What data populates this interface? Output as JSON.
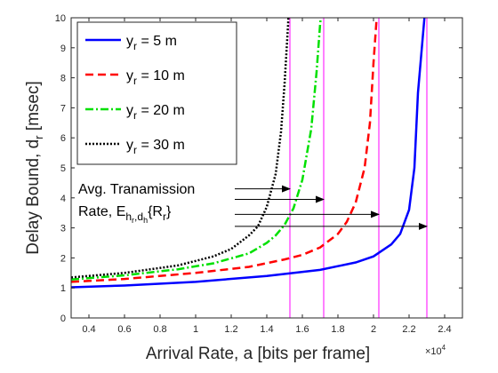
{
  "chart_data": {
    "type": "line",
    "xlabel": "Arrival Rate, a [bits per frame]",
    "ylabel_main": "Delay Bound, d",
    "ylabel_sub": "r",
    "ylabel_unit": " [msec]",
    "x_exponent": {
      "base": "×10",
      "power": "4"
    },
    "xlim": [
      0.3,
      2.5
    ],
    "ylim": [
      0,
      10
    ],
    "x_ticks": [
      0.4,
      0.6,
      0.8,
      1.0,
      1.2,
      1.4,
      1.6,
      1.8,
      2.0,
      2.2,
      2.4
    ],
    "x_tick_labels": [
      "0.4",
      "0.6",
      "0.8",
      "1",
      "1.2",
      "1.4",
      "1.6",
      "1.8",
      "2",
      "2.2",
      "2.4"
    ],
    "y_ticks": [
      0,
      1,
      2,
      3,
      4,
      5,
      6,
      7,
      8,
      9,
      10
    ],
    "y_tick_labels": [
      "0",
      "1",
      "2",
      "3",
      "4",
      "5",
      "6",
      "7",
      "8",
      "9",
      "10"
    ],
    "grid": false,
    "legend_position": "top-left",
    "series": [
      {
        "name": "y",
        "name_sub": "r",
        "name_rest": " = 5 m",
        "color": "#0000ff",
        "dash": "solid",
        "asymptote": 2.3,
        "x": [
          0.3,
          0.6,
          1.0,
          1.4,
          1.7,
          1.9,
          2.0,
          2.1,
          2.15,
          2.2,
          2.23,
          2.25
        ],
        "y": [
          1.02,
          1.08,
          1.2,
          1.4,
          1.6,
          1.85,
          2.05,
          2.45,
          2.8,
          3.6,
          5.0,
          7.5
        ]
      },
      {
        "name": "y",
        "name_sub": "r",
        "name_rest": " = 10 m",
        "color": "#ff0000",
        "dash": "dashed",
        "asymptote": 2.03,
        "x": [
          0.3,
          0.6,
          1.0,
          1.3,
          1.5,
          1.6,
          1.7,
          1.8,
          1.85,
          1.9,
          1.95,
          1.98,
          2.0
        ],
        "y": [
          1.2,
          1.3,
          1.5,
          1.7,
          1.95,
          2.1,
          2.35,
          2.8,
          3.2,
          3.85,
          5.0,
          6.5,
          8.5
        ]
      },
      {
        "name": "y",
        "name_sub": "r",
        "name_rest": " = 20 m",
        "color": "#00e000",
        "dash": "dashdot",
        "asymptote": 1.72,
        "x": [
          0.3,
          0.6,
          0.9,
          1.1,
          1.3,
          1.4,
          1.45,
          1.5,
          1.55,
          1.6,
          1.65,
          1.68,
          1.7
        ],
        "y": [
          1.28,
          1.42,
          1.62,
          1.82,
          2.15,
          2.5,
          2.75,
          3.1,
          3.65,
          4.6,
          6.3,
          8.2,
          9.8
        ]
      },
      {
        "name": "y",
        "name_sub": "r",
        "name_rest": " = 30 m",
        "color": "#000000",
        "dash": "dotted",
        "asymptote": 1.53,
        "x": [
          0.3,
          0.6,
          0.9,
          1.1,
          1.2,
          1.3,
          1.35,
          1.4,
          1.45,
          1.48,
          1.5,
          1.52
        ],
        "y": [
          1.35,
          1.5,
          1.75,
          2.05,
          2.3,
          2.75,
          3.05,
          3.7,
          4.8,
          6.2,
          7.8,
          9.8
        ]
      }
    ],
    "vertical_lines": {
      "color": "#ff00ff",
      "x": [
        1.53,
        1.72,
        2.03,
        2.3
      ]
    },
    "annotation": {
      "line1": "Avg. Tranamission",
      "line2_prefix": "Rate, E",
      "sub_h1": "h",
      "sub_r1": "r",
      "sub_comma": ",d",
      "sub_h2": "h",
      "brace_open": "{R",
      "brace_sub": "r",
      "brace_close": "}",
      "arrows": [
        {
          "x_start": 1.22,
          "x_end": 1.53,
          "y": 4.3
        },
        {
          "x_start": 1.22,
          "x_end": 1.72,
          "y": 3.95
        },
        {
          "x_start": 1.22,
          "x_end": 2.03,
          "y": 3.45
        },
        {
          "x_start": 1.22,
          "x_end": 2.3,
          "y": 3.05
        }
      ]
    }
  }
}
